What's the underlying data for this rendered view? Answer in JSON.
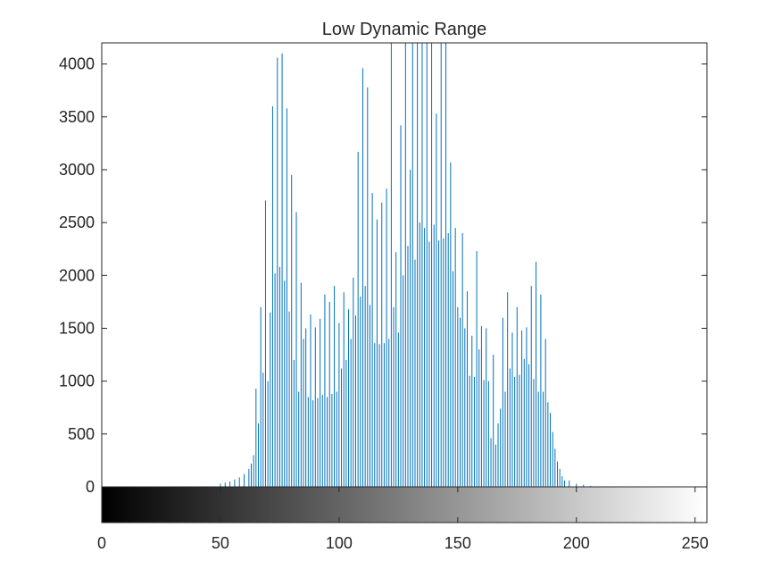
{
  "chart_data": {
    "type": "bar",
    "title": "Low Dynamic Range",
    "xlabel": "",
    "ylabel": "",
    "xlim": [
      0,
      255
    ],
    "ylim": [
      0,
      4200
    ],
    "x_ticks": [
      0,
      50,
      100,
      150,
      200,
      250
    ],
    "y_ticks": [
      0,
      500,
      1000,
      1500,
      2000,
      2500,
      3000,
      3500,
      4000
    ],
    "bar_color": "#0072BD",
    "colorbar": {
      "type": "grayscale",
      "min": 0,
      "max": 255
    },
    "grid": false,
    "series": [
      {
        "x": [
          50,
          52,
          54,
          56,
          58,
          60,
          62,
          63,
          64,
          65,
          66,
          67,
          68,
          69,
          70,
          71,
          72,
          73,
          74,
          75,
          76,
          77,
          78,
          79,
          80,
          81,
          82,
          83,
          84,
          85,
          86,
          87,
          88,
          89,
          90,
          91,
          92,
          93,
          94,
          95,
          96,
          97,
          98,
          99,
          100,
          101,
          102,
          103,
          104,
          105,
          106,
          107,
          108,
          109,
          110,
          111,
          112,
          113,
          114,
          115,
          116,
          117,
          118,
          119,
          120,
          121,
          122,
          123,
          124,
          125,
          126,
          127,
          128,
          129,
          130,
          131,
          132,
          133,
          134,
          135,
          136,
          137,
          138,
          139,
          140,
          141,
          142,
          143,
          144,
          145,
          146,
          147,
          148,
          149,
          150,
          151,
          152,
          153,
          154,
          155,
          156,
          157,
          158,
          159,
          160,
          161,
          162,
          163,
          164,
          165,
          166,
          167,
          168,
          169,
          170,
          171,
          172,
          173,
          174,
          175,
          176,
          177,
          178,
          179,
          180,
          181,
          182,
          183,
          184,
          185,
          186,
          187,
          188,
          189,
          190,
          191,
          192,
          193,
          194,
          195,
          197,
          200,
          203,
          206
        ],
        "y": [
          30,
          40,
          50,
          70,
          90,
          120,
          170,
          220,
          300,
          930,
          600,
          1700,
          1080,
          2710,
          1000,
          1650,
          3600,
          2020,
          4060,
          2080,
          4100,
          1950,
          3580,
          1660,
          2950,
          1200,
          2600,
          900,
          1930,
          1400,
          1500,
          850,
          1630,
          820,
          1510,
          840,
          1590,
          870,
          1820,
          850,
          1750,
          880,
          1900,
          900,
          1550,
          1120,
          1840,
          1200,
          1680,
          1400,
          1980,
          1620,
          3170,
          1800,
          3960,
          1900,
          3780,
          1720,
          2780,
          1360,
          2530,
          1350,
          2690,
          1360,
          2820,
          1400,
          4200,
          1700,
          2220,
          1460,
          3420,
          2000,
          4200,
          2280,
          3000,
          4200,
          2150,
          4200,
          2500,
          4200,
          2450,
          4200,
          2320,
          4200,
          2480,
          3530,
          2330,
          4200,
          2350,
          4200,
          2400,
          3070,
          2040,
          2450,
          1700,
          1600,
          2400,
          1500,
          1850,
          1050,
          1430,
          1040,
          2230,
          1300,
          1520,
          1010,
          1500,
          1000,
          460,
          1250,
          400,
          600,
          740,
          1600,
          900,
          1840,
          1120,
          1460,
          1040,
          1700,
          1060,
          1480,
          1210,
          1510,
          1160,
          1900,
          1020,
          2130,
          900,
          1820,
          900,
          1400,
          800,
          700,
          520,
          360,
          240,
          170,
          100,
          60,
          60,
          30,
          20,
          10
        ]
      }
    ]
  }
}
